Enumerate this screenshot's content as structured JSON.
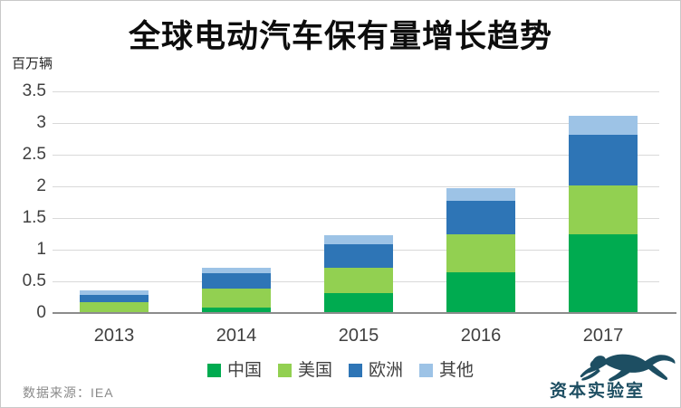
{
  "page": {
    "source_note": "数据来源：IEA",
    "branding": {
      "logo_text": "资本实验室",
      "logo_color": "#1d4e62",
      "logo_icon": "leaping-leopard-icon"
    }
  },
  "chart_data": {
    "type": "bar",
    "stacked": true,
    "title": "全球电动汽车保有量增长趋势",
    "unit_label": "百万辆",
    "xlabel": "",
    "ylabel": "百万辆",
    "categories": [
      "2013",
      "2014",
      "2015",
      "2016",
      "2017"
    ],
    "series": [
      {
        "name": "中国",
        "color": "#00ab50",
        "values": [
          0.02,
          0.09,
          0.31,
          0.64,
          1.24
        ]
      },
      {
        "name": "美国",
        "color": "#92d051",
        "values": [
          0.15,
          0.3,
          0.4,
          0.6,
          0.77
        ]
      },
      {
        "name": "欧洲",
        "color": "#2e75b6",
        "values": [
          0.11,
          0.24,
          0.38,
          0.53,
          0.8
        ]
      },
      {
        "name": "其他",
        "color": "#9dc3e6",
        "values": [
          0.08,
          0.08,
          0.14,
          0.2,
          0.31
        ]
      }
    ],
    "ylim": [
      0,
      3.5
    ],
    "ytick_values": [
      0,
      0.5,
      1,
      1.5,
      2,
      2.5,
      3,
      3.5
    ],
    "ytick_labels": [
      "0",
      "0.5",
      "1",
      "1.5",
      "2",
      "2.5",
      "3",
      "3.5"
    ],
    "grid": true,
    "legend_position": "bottom",
    "style": {
      "grid_color": "#d9d9d9",
      "axis_color": "#8c8c8c",
      "tick_text_color": "#404040"
    }
  }
}
